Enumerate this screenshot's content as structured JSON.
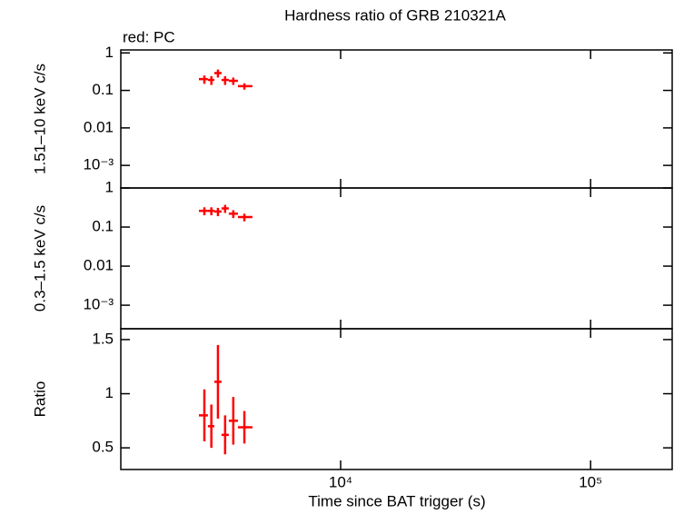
{
  "chart_data": [
    {
      "type": "scatter",
      "title": "Hardness ratio of GRB 210321A",
      "annotation": "red: PC",
      "ylabel": "1.51–10 keV c/s",
      "ylog": true,
      "xlog": true,
      "xlim": [
        1320,
        212000
      ],
      "xticks": [
        10000,
        100000
      ],
      "ylim": [
        0.00025,
        1.2
      ],
      "yticks": [
        1,
        0.1,
        0.01,
        {
          "value": 0.001,
          "label": "10⁻³"
        }
      ],
      "series": [
        {
          "name": "PC",
          "color": "#ff0000",
          "x": [
            2850,
            3040,
            3230,
            3450,
            3720,
            4120
          ],
          "x_low": [
            2710,
            2944,
            3123,
            3338,
            3569,
            3882
          ],
          "x_high": [
            2944,
            3123,
            3338,
            3569,
            3882,
            4437
          ],
          "values": [
            0.2,
            0.19,
            0.29,
            0.19,
            0.18,
            0.13
          ],
          "yerr": [
            0.05,
            0.05,
            0.07,
            0.05,
            0.04,
            0.025
          ]
        }
      ]
    },
    {
      "type": "scatter",
      "ylabel": "0.3–1.5 keV c/s",
      "ylog": true,
      "xlog": true,
      "xlim": [
        1320,
        212000
      ],
      "xticks": [
        10000,
        100000
      ],
      "ylim": [
        0.00025,
        1
      ],
      "yticks": [
        1,
        0.1,
        0.01,
        {
          "value": 0.001,
          "label": "10⁻³"
        }
      ],
      "series": [
        {
          "name": "PC",
          "color": "#ff0000",
          "x": [
            2850,
            3040,
            3230,
            3450,
            3720,
            4120
          ],
          "x_low": [
            2710,
            2944,
            3123,
            3338,
            3569,
            3882
          ],
          "x_high": [
            2944,
            3123,
            3338,
            3569,
            3882,
            4437
          ],
          "values": [
            0.26,
            0.26,
            0.25,
            0.3,
            0.22,
            0.18
          ],
          "yerr": [
            0.06,
            0.06,
            0.06,
            0.07,
            0.05,
            0.04
          ]
        }
      ]
    },
    {
      "type": "scatter",
      "ylabel": "Ratio",
      "xlabel": "Time since BAT trigger (s)",
      "ylog": false,
      "xlog": true,
      "xlim": [
        1320,
        212000
      ],
      "xticks": [
        {
          "value": 10000,
          "label": "10⁴"
        },
        {
          "value": 100000,
          "label": "10⁵"
        }
      ],
      "ylim": [
        0.3,
        1.6
      ],
      "yticks": [
        0.5,
        1,
        1.5
      ],
      "series": [
        {
          "name": "PC",
          "color": "#ff0000",
          "x": [
            2850,
            3040,
            3230,
            3450,
            3720,
            4120
          ],
          "x_low": [
            2710,
            2944,
            3123,
            3338,
            3569,
            3882
          ],
          "x_high": [
            2944,
            3123,
            3338,
            3569,
            3882,
            4437
          ],
          "values": [
            0.8,
            0.7,
            1.11,
            0.62,
            0.75,
            0.69
          ],
          "yerr": [
            0.24,
            0.2,
            0.34,
            0.18,
            0.22,
            0.15
          ]
        }
      ]
    }
  ]
}
